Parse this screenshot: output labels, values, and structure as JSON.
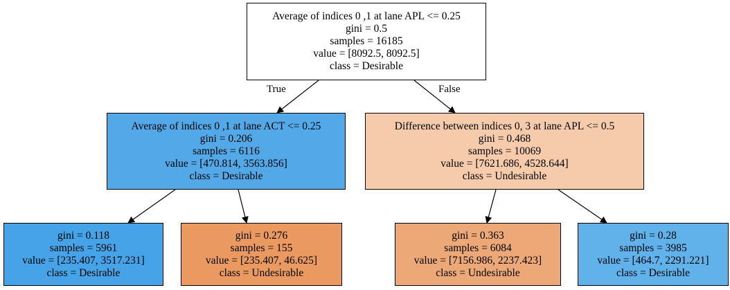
{
  "tree": {
    "root": {
      "lines": [
        "Average of indices 0 ,1 at lane APL <= 0.25",
        "gini = 0.5",
        "samples = 16185",
        "value = [8092.5, 8092.5]",
        "class = Desirable"
      ],
      "fill": "#ffffff"
    },
    "left": {
      "lines": [
        "Average of indices 0 ,1 at lane ACT <= 0.25",
        "gini = 0.206",
        "samples = 6116",
        "value = [470.814, 3563.856]",
        "class = Desirable"
      ],
      "fill": "#53a9e8"
    },
    "right": {
      "lines": [
        "Difference between indices 0, 3 at lane APL <= 0.5",
        "gini = 0.468",
        "samples = 10069",
        "value = [7621.686, 4528.644]",
        "class = Undesirable"
      ],
      "fill": "#f5cbac"
    },
    "left_left": {
      "lines": [
        "gini = 0.118",
        "samples = 5961",
        "value = [235.407, 3517.231]",
        "class = Desirable"
      ],
      "fill": "#46a3e7"
    },
    "left_right": {
      "lines": [
        "gini = 0.276",
        "samples = 155",
        "value = [235.407, 46.625]",
        "class = Undesirable"
      ],
      "fill": "#ea9a60"
    },
    "right_left": {
      "lines": [
        "gini = 0.363",
        "samples = 6084",
        "value = [7156.986, 2237.423]",
        "class = Undesirable"
      ],
      "fill": "#eda877"
    },
    "right_right": {
      "lines": [
        "gini = 0.28",
        "samples = 3985",
        "value = [464.7, 2291.221]",
        "class = Desirable"
      ],
      "fill": "#61b1ea"
    }
  },
  "edge_labels": {
    "true": "True",
    "false": "False"
  },
  "colors": {
    "edge": "#000000",
    "border": "#000000"
  }
}
